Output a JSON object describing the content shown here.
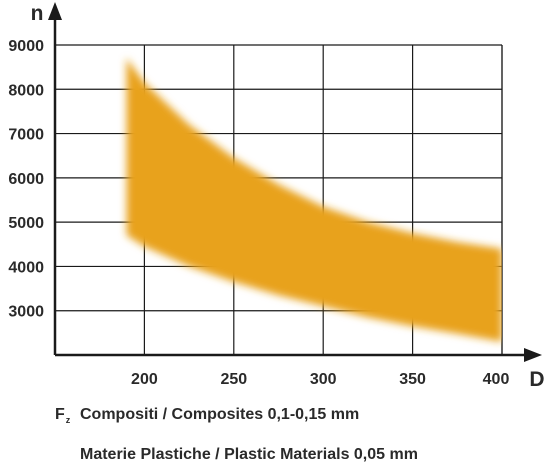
{
  "chart_data": {
    "type": "area",
    "x_axis": {
      "label": "D",
      "ticks": [
        200,
        250,
        300,
        350,
        400
      ],
      "range": [
        150,
        400
      ]
    },
    "y_axis": {
      "label": "n",
      "ticks": [
        3000,
        4000,
        5000,
        6000,
        7000,
        8000,
        9000
      ],
      "range": [
        2000,
        9000
      ]
    },
    "grid": true,
    "series": [
      {
        "color": "#e8a21f",
        "x": [
          190,
          200,
          225,
          250,
          275,
          300,
          325,
          350,
          375,
          400
        ],
        "upper": [
          8700,
          8150,
          7200,
          6450,
          5850,
          5350,
          5000,
          4750,
          4550,
          4400
        ],
        "lower": [
          4700,
          4450,
          4000,
          3650,
          3350,
          3100,
          2850,
          2650,
          2480,
          2300
        ]
      }
    ]
  },
  "legend": {
    "symbol": "F",
    "symbol_sub": "z",
    "line1": "Compositi / Composites 0,1-0,15 mm",
    "line2": "Materie Plastiche / Plastic Materials 0,05 mm"
  }
}
